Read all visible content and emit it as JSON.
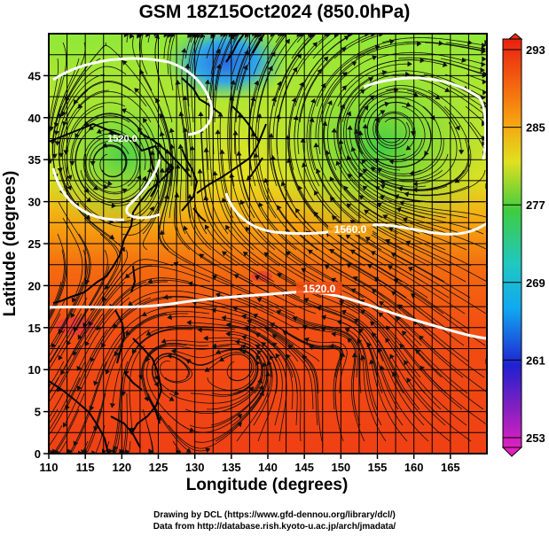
{
  "title": "GSM 18Z15Oct2024 (850.0hPa)",
  "axes": {
    "xlabel": "Longitude (degrees)",
    "ylabel": "Latitude  (degrees)",
    "xlim": [
      110,
      170
    ],
    "ylim": [
      0,
      50
    ],
    "xticks": [
      "110",
      "115",
      "120",
      "125",
      "130",
      "135",
      "140",
      "145",
      "150",
      "155",
      "160",
      "165"
    ],
    "yticks": [
      "0",
      "5",
      "10",
      "15",
      "20",
      "25",
      "30",
      "35",
      "40",
      "45"
    ]
  },
  "colorbar": {
    "range": [
      253,
      293
    ],
    "labels": [
      "293",
      "285",
      "277",
      "269",
      "261",
      "253"
    ],
    "colors": [
      "#d000d0",
      "#2020e0",
      "#00b4ff",
      "#40d040",
      "#e0e020",
      "#ff8000",
      "#e02000"
    ]
  },
  "contours": [
    {
      "label": "1520.0"
    },
    {
      "label": "1520.0"
    },
    {
      "label": "1560.0"
    }
  ],
  "credits": {
    "line1": "Drawing by DCL (https://www.gfd-dennou.org/library/dcl/)",
    "line2": "Data from http://database.rish.kyoto-u.ac.jp/arch/jmadata/"
  }
}
